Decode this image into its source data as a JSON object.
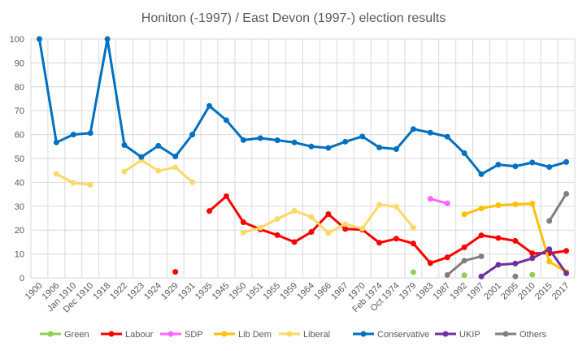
{
  "chart_data": {
    "type": "line",
    "title": "Honiton (-1997) / East Devon (1997-) election results",
    "ylim": [
      0,
      100
    ],
    "yticks": [
      0,
      10,
      20,
      30,
      40,
      50,
      60,
      70,
      80,
      90,
      100
    ],
    "grid": true,
    "legend_position": "bottom",
    "categories": [
      "1900",
      "1906",
      "Jan 1910",
      "Dec 1910",
      "1918",
      "1922",
      "1923",
      "1924",
      "1929",
      "1931",
      "1935",
      "1945",
      "1950",
      "1951",
      "1955",
      "1959",
      "1964",
      "1966",
      "1967",
      "1970",
      "Feb 1974",
      "Oct 1974",
      "1979",
      "1983",
      "1987",
      "1992",
      "1997",
      "2001",
      "2005",
      "2010",
      "2015",
      "2017"
    ],
    "series": [
      {
        "name": "Green",
        "color": "#92d050",
        "values": [
          null,
          null,
          null,
          null,
          null,
          null,
          null,
          null,
          null,
          null,
          null,
          null,
          null,
          null,
          null,
          null,
          null,
          null,
          null,
          null,
          null,
          null,
          2.4,
          null,
          null,
          1.1,
          null,
          null,
          null,
          1.3,
          null,
          null
        ]
      },
      {
        "name": "Labour",
        "color": "#ff0000",
        "values": [
          null,
          null,
          null,
          null,
          null,
          null,
          null,
          null,
          2.5,
          null,
          28,
          34.2,
          23.3,
          20.3,
          17.9,
          15,
          19.2,
          26.7,
          20.5,
          20.2,
          14.7,
          16.4,
          14.4,
          6.2,
          8.6,
          12.8,
          17.8,
          16.7,
          15.5,
          10.3,
          10.3,
          11.3
        ]
      },
      {
        "name": "SDP",
        "color": "#ff66ff",
        "values": [
          null,
          null,
          null,
          null,
          null,
          null,
          null,
          null,
          null,
          null,
          null,
          null,
          null,
          null,
          null,
          null,
          null,
          null,
          null,
          null,
          null,
          null,
          null,
          33.1,
          31.2,
          null,
          null,
          null,
          null,
          null,
          null,
          null
        ]
      },
      {
        "name": "Lib Dem",
        "color": "#ffc000",
        "values": [
          null,
          null,
          null,
          null,
          null,
          null,
          null,
          null,
          null,
          null,
          null,
          null,
          null,
          null,
          null,
          null,
          null,
          null,
          null,
          null,
          null,
          null,
          null,
          null,
          null,
          26.6,
          29.1,
          30.4,
          30.8,
          31.1,
          6.8,
          2.5
        ]
      },
      {
        "name": "Liberal",
        "color": "#ffd966",
        "values": [
          null,
          43.5,
          39.8,
          39,
          null,
          44.5,
          49.3,
          44.8,
          46.3,
          40,
          null,
          null,
          19,
          21,
          24.6,
          28.1,
          25.5,
          18.8,
          22.5,
          20.6,
          30.6,
          29.8,
          21,
          null,
          null,
          null,
          null,
          null,
          null,
          null,
          null,
          null
        ]
      },
      {
        "name": "Conservative",
        "color": "#0070c0",
        "values": [
          100,
          56.7,
          60,
          60.6,
          100,
          55.6,
          50.6,
          55.3,
          50.8,
          60,
          72,
          66,
          57.7,
          58.5,
          57.6,
          56.7,
          55,
          54.4,
          57,
          59.2,
          54.6,
          53.9,
          62.3,
          60.8,
          59.1,
          52.2,
          43.4,
          47.4,
          46.7,
          48.3,
          46.4,
          48.5
        ]
      },
      {
        "name": "UKIP",
        "color": "#7030a0",
        "values": [
          null,
          null,
          null,
          null,
          null,
          null,
          null,
          null,
          null,
          null,
          null,
          null,
          null,
          null,
          null,
          null,
          null,
          null,
          null,
          null,
          null,
          null,
          null,
          null,
          null,
          null,
          0.6,
          5.5,
          6,
          8.2,
          12,
          1.9
        ]
      },
      {
        "name": "Others",
        "color": "#808080",
        "values": [
          null,
          null,
          null,
          null,
          null,
          null,
          null,
          null,
          null,
          null,
          null,
          null,
          null,
          null,
          null,
          null,
          null,
          null,
          null,
          null,
          null,
          null,
          null,
          null,
          1.2,
          7.2,
          9,
          null,
          0.6,
          null,
          23.8,
          35.2
        ]
      }
    ]
  }
}
